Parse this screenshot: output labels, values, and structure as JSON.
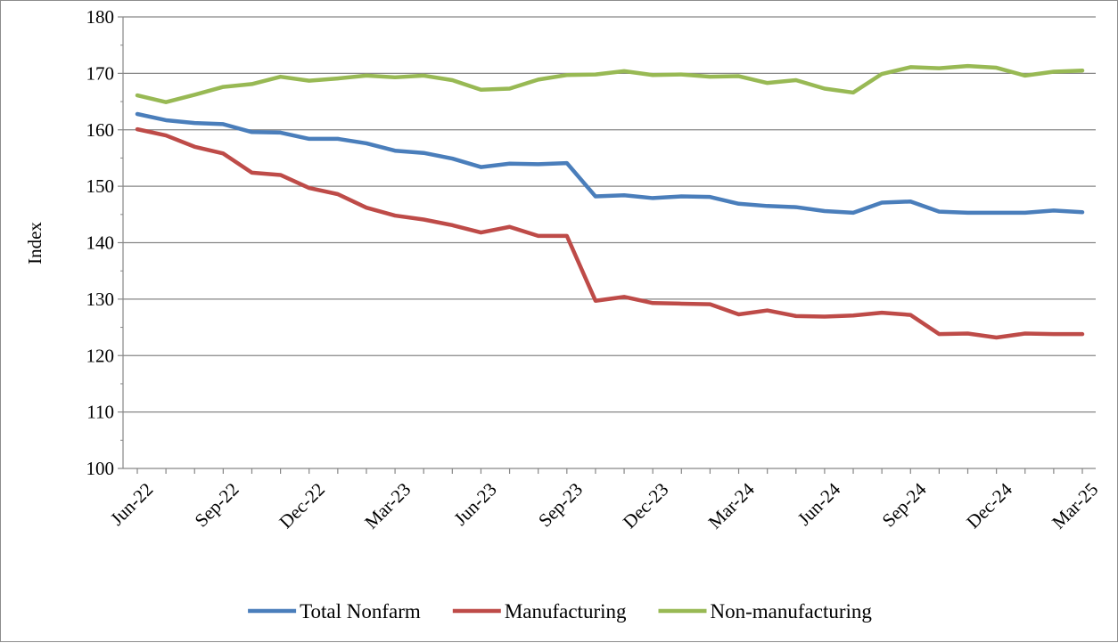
{
  "chart_data": {
    "type": "line",
    "title": "",
    "xlabel": "",
    "ylabel": "Index",
    "ylim": [
      100,
      180
    ],
    "yticks": [
      100,
      110,
      120,
      130,
      140,
      150,
      160,
      170,
      180
    ],
    "grid": "horizontal",
    "legend_position": "bottom",
    "x": [
      "Jun-22",
      "Jul-22",
      "Aug-22",
      "Sep-22",
      "Oct-22",
      "Nov-22",
      "Dec-22",
      "Jan-23",
      "Feb-23",
      "Mar-23",
      "Apr-23",
      "May-23",
      "Jun-23",
      "Jul-23",
      "Aug-23",
      "Sep-23",
      "Oct-23",
      "Nov-23",
      "Dec-23",
      "Jan-24",
      "Feb-24",
      "Mar-24",
      "Apr-24",
      "May-24",
      "Jun-24",
      "Jul-24",
      "Aug-24",
      "Sep-24",
      "Oct-24",
      "Nov-24",
      "Dec-24",
      "Jan-25",
      "Feb-25",
      "Mar-25"
    ],
    "x_tick_labels": [
      "Jun-22",
      "Sep-22",
      "Dec-22",
      "Mar-23",
      "Jun-23",
      "Sep-23",
      "Dec-23",
      "Mar-24",
      "Jun-24",
      "Sep-24",
      "Dec-24",
      "Mar-25"
    ],
    "series": [
      {
        "name": "Total Nonfarm",
        "color": "#4a7ebb",
        "values": [
          162.8,
          161.7,
          161.2,
          161.0,
          159.6,
          159.5,
          158.4,
          158.4,
          157.6,
          156.3,
          155.9,
          154.9,
          153.4,
          154.0,
          153.9,
          154.1,
          148.2,
          148.4,
          147.9,
          148.2,
          148.1,
          146.9,
          146.5,
          146.3,
          145.6,
          145.3,
          147.1,
          147.3,
          145.5,
          145.3,
          145.3,
          145.3,
          145.7,
          145.4
        ]
      },
      {
        "name": "Manufacturing",
        "color": "#be4b48",
        "values": [
          160.1,
          159.0,
          157.0,
          155.8,
          152.4,
          152.0,
          149.7,
          148.6,
          146.2,
          144.8,
          144.1,
          143.1,
          141.8,
          142.8,
          141.2,
          141.2,
          129.7,
          130.4,
          129.3,
          129.2,
          129.1,
          127.3,
          128.0,
          127.0,
          126.9,
          127.1,
          127.6,
          127.2,
          123.8,
          123.9,
          123.2,
          123.9,
          123.8,
          123.8
        ]
      },
      {
        "name": "Non-manufacturing",
        "color": "#98b954",
        "values": [
          166.1,
          164.9,
          166.2,
          167.6,
          168.1,
          169.4,
          168.7,
          169.1,
          169.6,
          169.3,
          169.6,
          168.8,
          167.1,
          167.3,
          168.9,
          169.7,
          169.8,
          170.4,
          169.7,
          169.8,
          169.4,
          169.5,
          168.3,
          168.8,
          167.3,
          166.6,
          169.9,
          171.1,
          170.9,
          171.3,
          171.0,
          169.6,
          170.3,
          170.5
        ]
      }
    ]
  }
}
